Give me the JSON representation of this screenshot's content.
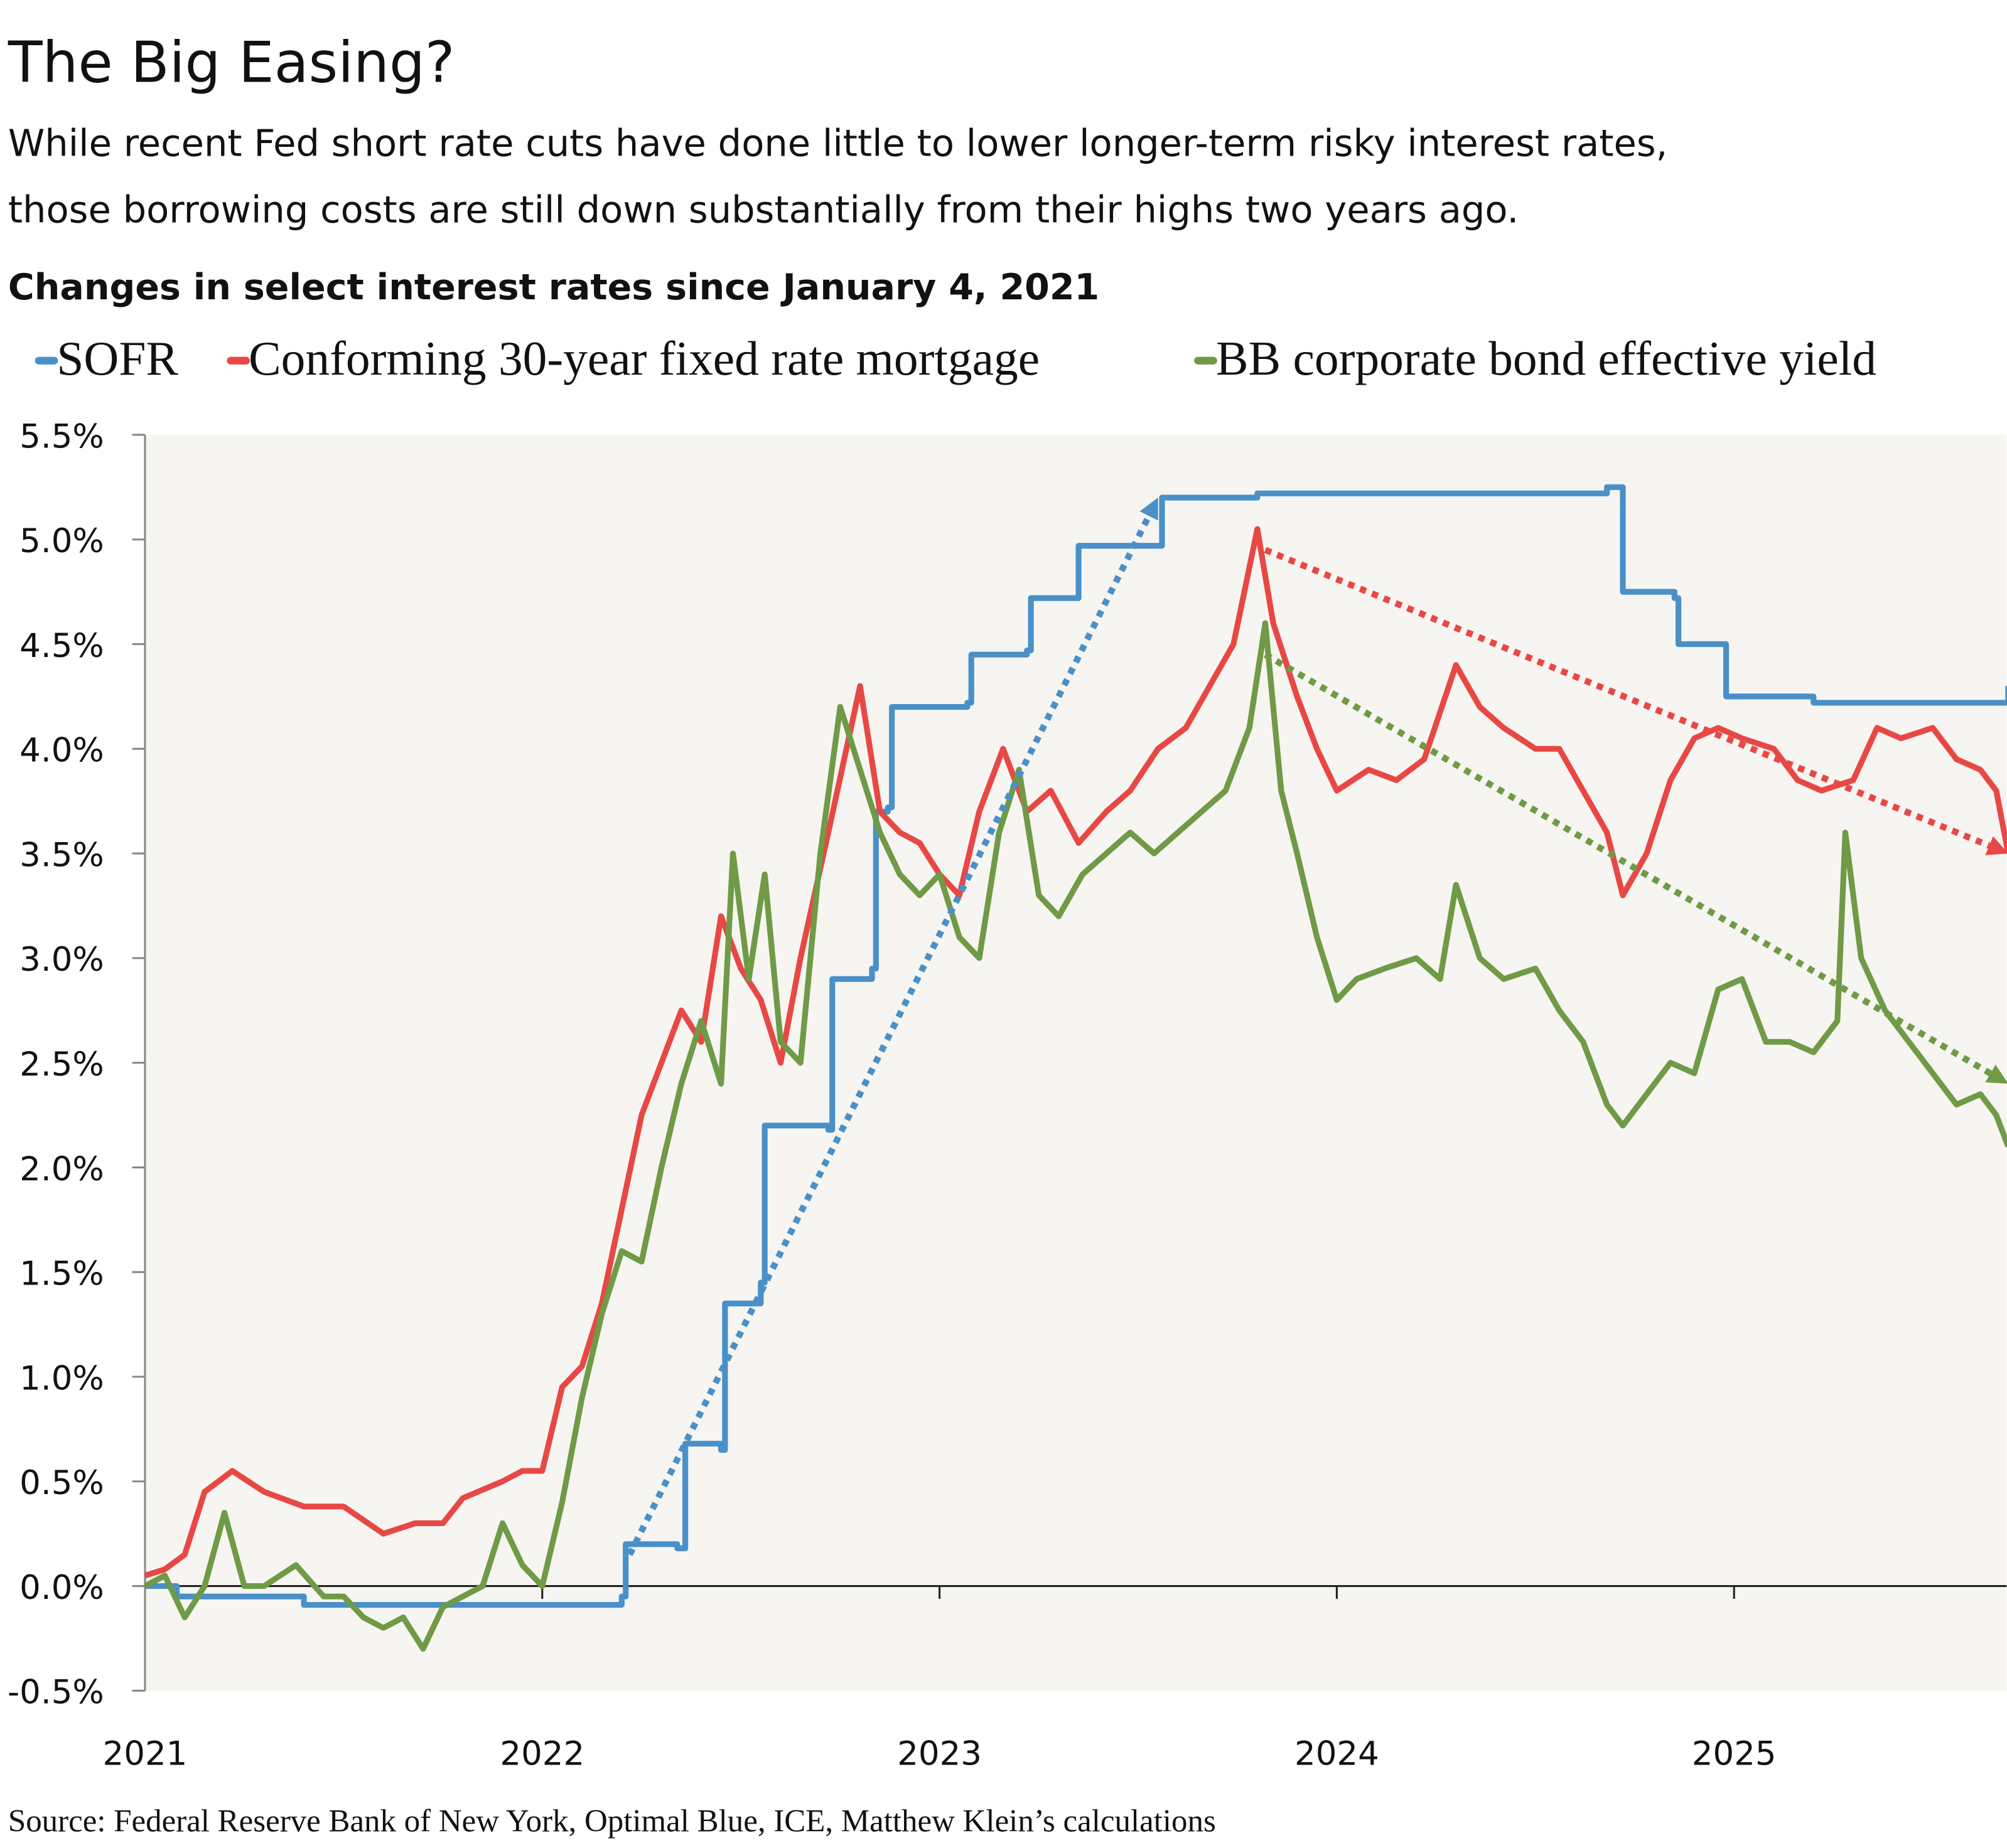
{
  "title": "The Big Easing?",
  "subtitle_lines": [
    "While recent Fed short rate cuts have done little to lower longer-term risky interest rates,",
    "those borrowing costs are still down substantially from their highs two years ago."
  ],
  "chart_heading": "Changes in select interest rates since January 4, 2021",
  "source": "Source: Federal Reserve Bank of New York, Optimal Blue, ICE, Matthew Klein’s calculations",
  "chart_data": {
    "type": "line",
    "title": "Changes in select interest rates since January 4, 2021",
    "xlabel": "",
    "ylabel": "",
    "xlim": [
      2021.0,
      2025.69
    ],
    "ylim": [
      -0.5,
      5.5
    ],
    "x_ticks": [
      2021,
      2022,
      2023,
      2024,
      2025
    ],
    "x_tick_labels": [
      "2021",
      "2022",
      "2023",
      "2024",
      "2025"
    ],
    "y_ticks": [
      -0.5,
      0,
      0.5,
      1,
      1.5,
      2,
      2.5,
      3,
      3.5,
      4,
      4.5,
      5,
      5.5
    ],
    "y_tick_labels": [
      "-0.5%",
      "0.0%",
      "0.5%",
      "1.0%",
      "1.5%",
      "2.0%",
      "2.5%",
      "3.0%",
      "3.5%",
      "4.0%",
      "4.5%",
      "5.0%",
      "5.5%"
    ],
    "legend_placement": "top",
    "background": "#f6f5f1",
    "series": [
      {
        "name": "SOFR",
        "color": "#4a90c8",
        "step": true,
        "x": [
          2021.0,
          2021.08,
          2021.4,
          2022.2,
          2022.21,
          2022.34,
          2022.36,
          2022.45,
          2022.46,
          2022.55,
          2022.56,
          2022.72,
          2022.73,
          2022.83,
          2022.84,
          2022.87,
          2022.88,
          2023.07,
          2023.08,
          2023.22,
          2023.23,
          2023.34,
          2023.35,
          2023.55,
          2023.56,
          2023.8,
          2024.0,
          2024.3,
          2024.68,
          2024.71,
          2024.72,
          2024.85,
          2024.86,
          2024.97,
          2024.98,
          2025.2,
          2025.5,
          2025.69
        ],
        "y": [
          0.0,
          -0.05,
          -0.09,
          -0.05,
          0.2,
          0.18,
          0.68,
          0.65,
          1.35,
          1.45,
          2.2,
          2.18,
          2.9,
          2.95,
          3.7,
          3.72,
          4.2,
          4.22,
          4.45,
          4.47,
          4.72,
          4.72,
          4.97,
          4.97,
          5.2,
          5.22,
          5.22,
          5.22,
          5.25,
          5.25,
          4.75,
          4.72,
          4.5,
          4.5,
          4.25,
          4.22,
          4.22,
          4.3
        ]
      },
      {
        "name": "Conforming 30-year fixed rate mortgage",
        "color": "#e84845",
        "x": [
          2021.0,
          2021.05,
          2021.1,
          2021.15,
          2021.22,
          2021.3,
          2021.4,
          2021.5,
          2021.6,
          2021.68,
          2021.75,
          2021.8,
          2021.9,
          2021.95,
          2022.0,
          2022.05,
          2022.1,
          2022.15,
          2022.2,
          2022.25,
          2022.3,
          2022.35,
          2022.4,
          2022.45,
          2022.5,
          2022.55,
          2022.6,
          2022.65,
          2022.72,
          2022.8,
          2022.85,
          2022.9,
          2022.95,
          2023.0,
          2023.05,
          2023.1,
          2023.16,
          2023.22,
          2023.28,
          2023.35,
          2023.42,
          2023.48,
          2023.55,
          2023.62,
          2023.68,
          2023.74,
          2023.8,
          2023.84,
          2023.9,
          2023.95,
          2024.0,
          2024.08,
          2024.15,
          2024.22,
          2024.3,
          2024.36,
          2024.42,
          2024.5,
          2024.56,
          2024.62,
          2024.68,
          2024.72,
          2024.78,
          2024.84,
          2024.9,
          2024.96,
          2025.02,
          2025.1,
          2025.16,
          2025.22,
          2025.3,
          2025.36,
          2025.42,
          2025.5,
          2025.56,
          2025.62,
          2025.66,
          2025.69
        ],
        "y": [
          0.05,
          0.08,
          0.15,
          0.45,
          0.55,
          0.45,
          0.38,
          0.38,
          0.25,
          0.3,
          0.3,
          0.42,
          0.5,
          0.55,
          0.55,
          0.95,
          1.05,
          1.35,
          1.8,
          2.25,
          2.5,
          2.75,
          2.6,
          3.2,
          2.95,
          2.8,
          2.5,
          3.0,
          3.6,
          4.3,
          3.7,
          3.6,
          3.55,
          3.4,
          3.3,
          3.7,
          4.0,
          3.7,
          3.8,
          3.55,
          3.7,
          3.8,
          4.0,
          4.1,
          4.3,
          4.5,
          5.05,
          4.6,
          4.25,
          4.0,
          3.8,
          3.9,
          3.85,
          3.95,
          4.4,
          4.2,
          4.1,
          4.0,
          4.0,
          3.8,
          3.6,
          3.3,
          3.5,
          3.85,
          4.05,
          4.1,
          4.05,
          4.0,
          3.85,
          3.8,
          3.85,
          4.1,
          4.05,
          4.1,
          3.95,
          3.9,
          3.8,
          3.5
        ]
      },
      {
        "name": "BB corporate bond effective yield",
        "color": "#6f9a46",
        "x": [
          2021.0,
          2021.05,
          2021.1,
          2021.15,
          2021.2,
          2021.25,
          2021.3,
          2021.38,
          2021.45,
          2021.5,
          2021.55,
          2021.6,
          2021.65,
          2021.7,
          2021.75,
          2021.8,
          2021.85,
          2021.9,
          2021.95,
          2022.0,
          2022.05,
          2022.1,
          2022.15,
          2022.2,
          2022.25,
          2022.3,
          2022.35,
          2022.4,
          2022.45,
          2022.48,
          2022.52,
          2022.56,
          2022.6,
          2022.65,
          2022.7,
          2022.75,
          2022.8,
          2022.85,
          2022.9,
          2022.95,
          2023.0,
          2023.05,
          2023.1,
          2023.15,
          2023.2,
          2023.25,
          2023.3,
          2023.36,
          2023.42,
          2023.48,
          2023.54,
          2023.6,
          2023.66,
          2023.72,
          2023.78,
          2023.82,
          2023.86,
          2023.9,
          2023.95,
          2024.0,
          2024.05,
          2024.12,
          2024.2,
          2024.26,
          2024.3,
          2024.36,
          2024.42,
          2024.5,
          2024.56,
          2024.62,
          2024.68,
          2024.72,
          2024.78,
          2024.84,
          2024.9,
          2024.96,
          2025.02,
          2025.08,
          2025.14,
          2025.2,
          2025.26,
          2025.28,
          2025.32,
          2025.38,
          2025.44,
          2025.5,
          2025.56,
          2025.62,
          2025.66,
          2025.69
        ],
        "y": [
          0.0,
          0.05,
          -0.15,
          0.0,
          0.35,
          0.0,
          0.0,
          0.1,
          -0.05,
          -0.05,
          -0.15,
          -0.2,
          -0.15,
          -0.3,
          -0.1,
          -0.05,
          0.0,
          0.3,
          0.1,
          0.0,
          0.4,
          0.9,
          1.3,
          1.6,
          1.55,
          2.0,
          2.4,
          2.7,
          2.4,
          3.5,
          2.9,
          3.4,
          2.6,
          2.5,
          3.5,
          4.2,
          3.9,
          3.6,
          3.4,
          3.3,
          3.4,
          3.1,
          3.0,
          3.6,
          3.9,
          3.3,
          3.2,
          3.4,
          3.5,
          3.6,
          3.5,
          3.6,
          3.7,
          3.8,
          4.1,
          4.6,
          3.8,
          3.5,
          3.1,
          2.8,
          2.9,
          2.95,
          3.0,
          2.9,
          3.35,
          3.0,
          2.9,
          2.95,
          2.75,
          2.6,
          2.3,
          2.2,
          2.35,
          2.5,
          2.45,
          2.85,
          2.9,
          2.6,
          2.6,
          2.55,
          2.7,
          3.6,
          3.0,
          2.75,
          2.6,
          2.45,
          2.3,
          2.35,
          2.25,
          2.1
        ]
      }
    ],
    "annotations": [
      {
        "type": "dotted-arrow",
        "color": "#4a90c8",
        "from": [
          2022.22,
          0.15
        ],
        "to": [
          2023.55,
          5.2
        ]
      },
      {
        "type": "dotted-arrow",
        "color": "#e84845",
        "from": [
          2023.82,
          4.95
        ],
        "to": [
          2025.69,
          3.5
        ]
      },
      {
        "type": "dotted-arrow",
        "color": "#6f9a46",
        "from": [
          2023.82,
          4.45
        ],
        "to": [
          2025.69,
          2.4
        ]
      }
    ]
  }
}
